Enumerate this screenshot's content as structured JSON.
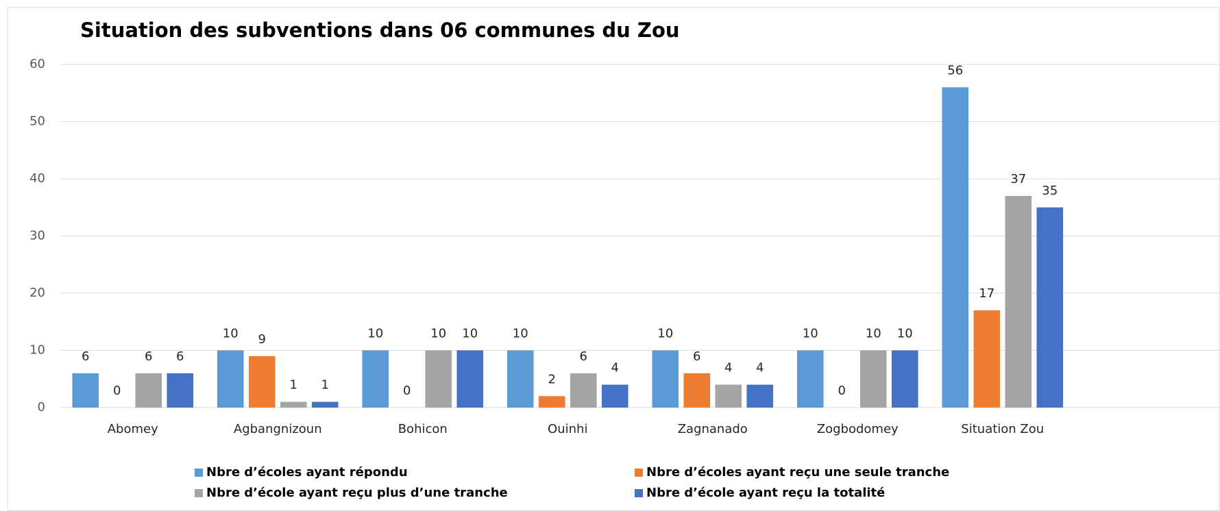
{
  "chart_data": {
    "type": "bar",
    "title": "Situation des subventions dans 06 communes du Zou",
    "categories": [
      "Abomey",
      "Agbangnizoun",
      "Bohicon",
      "Ouinhi",
      "Zagnanado",
      "Zogbodomey",
      "Situation Zou",
      null
    ],
    "series": [
      {
        "name": "Nbre d’écoles ayant répondu",
        "color": "#5b9bd5",
        "values": [
          6,
          10,
          10,
          10,
          10,
          10,
          56,
          null
        ]
      },
      {
        "name": "Nbre d’écoles ayant reçu une seule tranche",
        "color": "#ed7d31",
        "values": [
          0,
          9,
          0,
          2,
          6,
          0,
          17,
          null
        ]
      },
      {
        "name": "Nbre d’école ayant reçu plus d’une tranche",
        "color": "#a5a5a5",
        "values": [
          6,
          1,
          10,
          6,
          4,
          10,
          37,
          null
        ]
      },
      {
        "name": "Nbre d’école ayant reçu la totalité",
        "color": "#4472c4",
        "values": [
          6,
          1,
          10,
          4,
          4,
          10,
          35,
          null
        ]
      }
    ],
    "ylim": [
      0,
      60
    ],
    "yticks": [
      0,
      10,
      20,
      30,
      40,
      50,
      60
    ],
    "grid": true,
    "legend": "bottom"
  }
}
